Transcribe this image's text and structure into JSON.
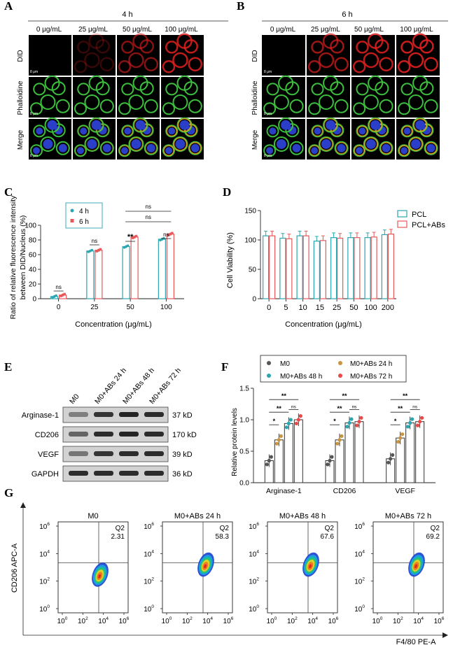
{
  "panels": {
    "A": {
      "letter": "A",
      "time": "4 h",
      "concentrations": [
        "0 μg/mL",
        "25 μg/mL",
        "50 μg/mL",
        "100 μg/mL"
      ],
      "rows": [
        "DID",
        "Phalloidine",
        "Merge"
      ],
      "scale": "8 μm",
      "red_intensity": [
        0.02,
        0.25,
        0.6,
        0.85
      ]
    },
    "B": {
      "letter": "B",
      "time": "6 h",
      "concentrations": [
        "0 μg/mL",
        "25 μg/mL",
        "50 μg/mL",
        "100 μg/mL"
      ],
      "rows": [
        "DID",
        "Phalloidine",
        "Merge"
      ],
      "scale": "8 μm",
      "red_intensity": [
        0.02,
        0.7,
        0.85,
        0.9
      ]
    },
    "C": {
      "letter": "C",
      "chart_data": {
        "type": "bar",
        "categories": [
          "0",
          "25",
          "50",
          "100"
        ],
        "series": [
          {
            "name": "4 h",
            "values": [
              3,
              65,
              71,
              81
            ],
            "color": "#2aa6b0"
          },
          {
            "name": "6 h",
            "values": [
              5,
              66,
              84,
              88
            ],
            "color": "#e8585a"
          }
        ],
        "ylabel": "Ratio of relative fluorescence intensity between DID/Nucleus (%)",
        "ylabel_lines": [
          "Ratio of relative fluorescence intensity",
          "between DID/Nucleus (%)"
        ],
        "xlabel": "Concentration (μg/mL)",
        "ylim": [
          0,
          100
        ],
        "yticks": [
          0,
          20,
          40,
          60,
          80,
          100
        ],
        "significance": [
          "ns",
          "ns",
          "**",
          "ns",
          "ns",
          "ns"
        ],
        "legend": [
          "4 h",
          "6 h"
        ]
      }
    },
    "D": {
      "letter": "D",
      "chart_data": {
        "type": "bar",
        "categories": [
          "0",
          "5",
          "10",
          "15",
          "25",
          "50",
          "100",
          "200"
        ],
        "series": [
          {
            "name": "PCL",
            "values": [
              107,
              103,
              107,
              98,
              104,
              104,
              104,
              109
            ],
            "color": "#2aa6b0"
          },
          {
            "name": "PCL+ABs",
            "values": [
              107,
              102,
              107,
              99,
              103,
              104,
              105,
              110
            ],
            "color": "#e8585a"
          }
        ],
        "ylabel": "Cell Viability (%)",
        "xlabel": "Concentration (μg/mL)",
        "ylim": [
          0,
          150
        ],
        "yticks": [
          0,
          50,
          100,
          150
        ],
        "legend": [
          "PCL",
          "PCL+ABs"
        ]
      }
    },
    "E": {
      "letter": "E",
      "lanes": [
        "M0",
        "M0+ABs 24 h",
        "M0+ABs 48 h",
        "M0+ABs 72 h"
      ],
      "proteins": [
        "Arginase-1",
        "CD206",
        "VEGF",
        "GAPDH"
      ],
      "sizes": [
        "37 kD",
        "170 kD",
        "39 kD",
        "36 kD"
      ]
    },
    "F": {
      "letter": "F",
      "chart_data": {
        "type": "bar",
        "categories": [
          "Arginase-1",
          "CD206",
          "VEGF"
        ],
        "series": [
          {
            "name": "M0",
            "values": [
              0.35,
              0.35,
              0.38
            ],
            "color": "#555555"
          },
          {
            "name": "M0+ABs 24 h",
            "values": [
              0.68,
              0.68,
              0.71
            ],
            "color": "#c8963e"
          },
          {
            "name": "M0+ABs 48 h",
            "values": [
              0.94,
              0.95,
              0.95
            ],
            "color": "#2aa6b0"
          },
          {
            "name": "M0+ABs 72 h",
            "values": [
              1.0,
              0.97,
              0.97
            ],
            "color": "#e84a4a"
          }
        ],
        "ylabel": "Relative protein levels",
        "ylim": [
          0,
          1.5
        ],
        "yticks": [
          "0.0",
          "0.5",
          "1.0",
          "1.5"
        ],
        "significance": [
          "*",
          "**",
          "**",
          "ns"
        ],
        "legend": [
          "M0",
          "M0+ABs 24 h",
          "M0+ABs 48 h",
          "M0+ABs 72 h"
        ]
      }
    },
    "G": {
      "letter": "G",
      "plots": [
        {
          "title": "M0",
          "quadrant": "Q2",
          "value": "2.31"
        },
        {
          "title": "M0+ABs 24 h",
          "quadrant": "Q2",
          "value": "58.3"
        },
        {
          "title": "M0+ABs 48 h",
          "quadrant": "Q2",
          "value": "67.6"
        },
        {
          "title": "M0+ABs 72 h",
          "quadrant": "Q2",
          "value": "69.2"
        }
      ],
      "ylabel": "CD206 APC-A",
      "xlabel": "F4/80 PE-A",
      "ticks_base": "10",
      "ticks_exp": [
        "0",
        "2",
        "4",
        "6"
      ]
    }
  }
}
